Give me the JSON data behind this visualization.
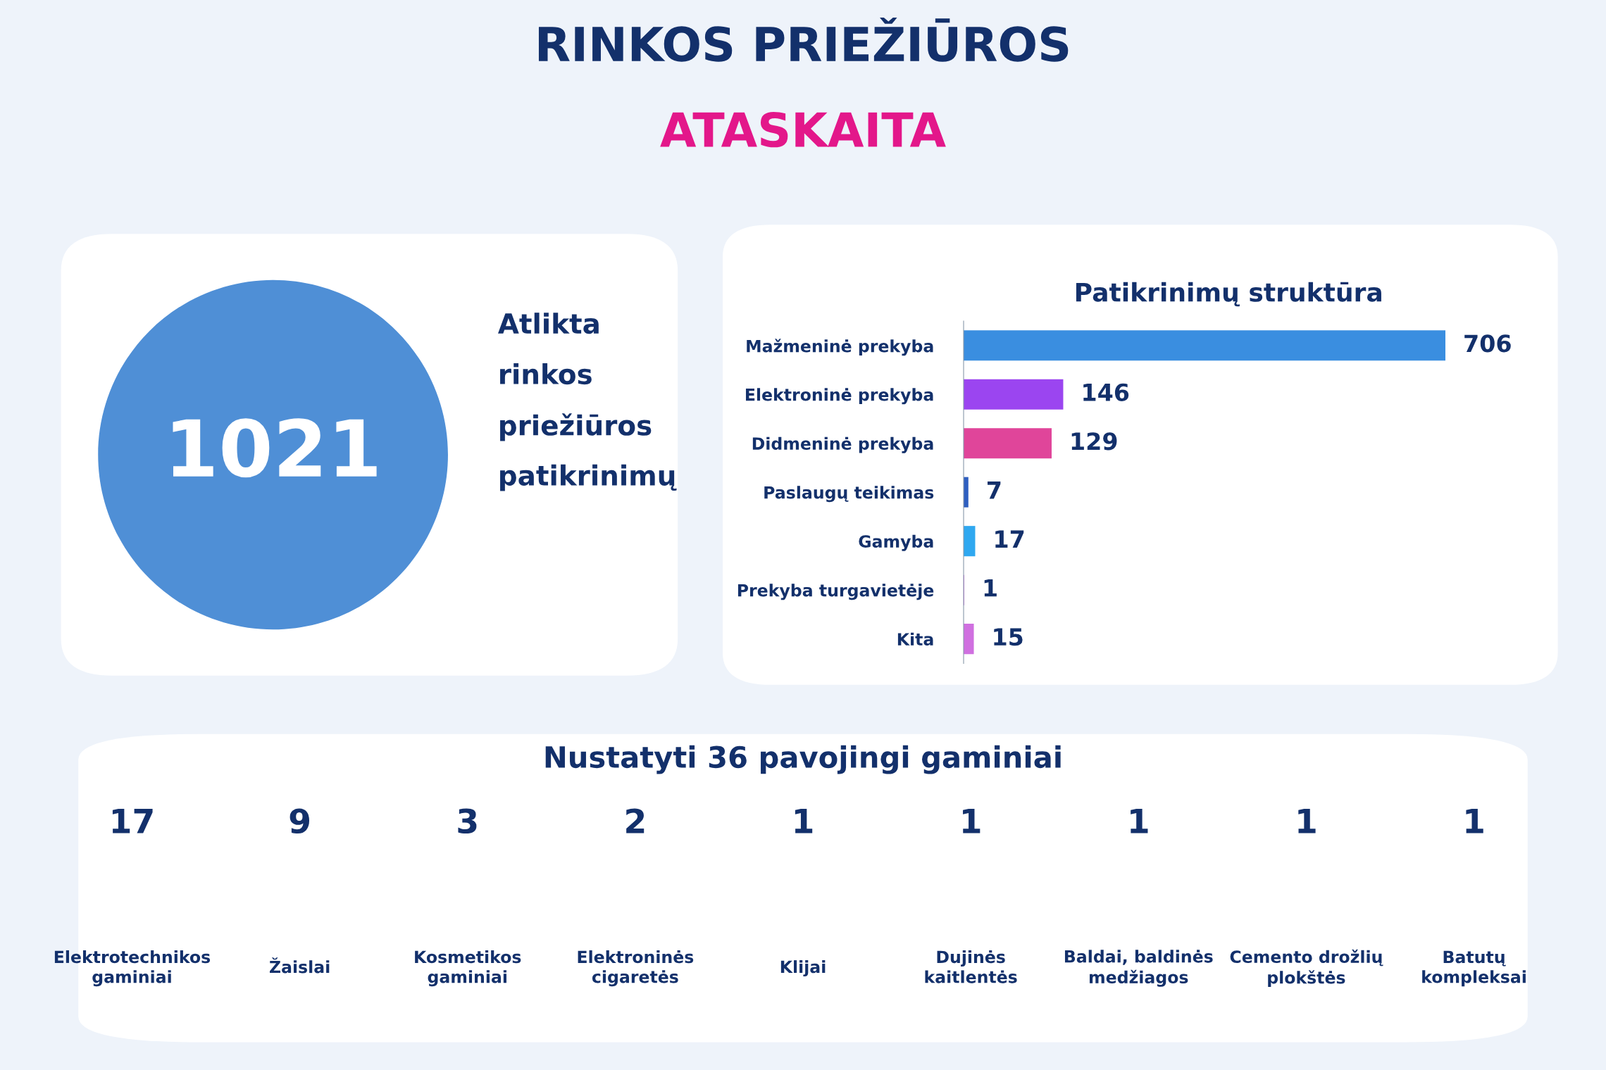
{
  "chart_data": [
    {
      "type": "other",
      "title": "RINKOS PRIEŽIŪROS",
      "subtitle": "ATASKAITA",
      "annotations": [
        "1021",
        "Atlikta rinkos priežiūros patikrinimų"
      ]
    },
    {
      "type": "bar",
      "orientation": "horizontal",
      "title": "Patikrinimų struktūra",
      "data_labels": true,
      "categories": [
        "Mažmeninė prekyba",
        "Elektroninė prekyba",
        "Didmeninė prekyba",
        "Paslaugų teikimas",
        "Gamyba",
        "Prekyba turgavietėje",
        "Kita"
      ],
      "values": [
        706,
        146,
        129,
        7,
        17,
        1,
        15
      ],
      "colors": [
        "#3a8ee0",
        "#9b45f0",
        "#e0459a",
        "#2f5fc0",
        "#2fa8f0",
        "#d070e0",
        "#d070e0"
      ]
    },
    {
      "type": "other",
      "title": "Nustatyti 36 pavojingi gaminiai",
      "data_labels": true,
      "categories": [
        "Elektrotechnikos gaminiai",
        "Žaislai",
        "Kosmetikos gaminiai",
        "Elektroninės cigaretės",
        "Klijai",
        "Dujinės kaitlentės",
        "Baldai, baldinės medžiagos",
        "Cemento drožlių plokštės",
        "Batutų kompleksai"
      ],
      "values": [
        17,
        9,
        3,
        2,
        1,
        1,
        1,
        1,
        1
      ]
    }
  ]
}
